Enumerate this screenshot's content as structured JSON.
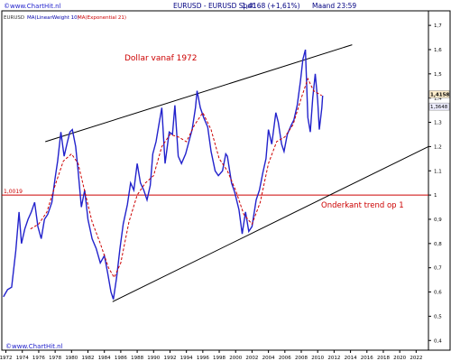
{
  "header": {
    "watermark_top": "©www.ChartHit.nl",
    "title": "EURUSD - EURUSD Spot",
    "last_change": "1,4168 (+1,61%)",
    "period": "Maand 23:59"
  },
  "legend_row": {
    "symbol": "EURUSD",
    "ma_long": "MA(LinearWeight 10)",
    "ma_short": "MA(Exponential 21)"
  },
  "watermark_bottom": "©www.ChartHit.nl",
  "chart_data": {
    "type": "line",
    "title": "Dollar vanaf 1972",
    "x_ticks": [
      "1972",
      "1974",
      "1976",
      "1978",
      "1980",
      "1982",
      "1984",
      "1986",
      "1988",
      "1990",
      "1992",
      "1994",
      "1996",
      "1998",
      "2000",
      "2002",
      "2004",
      "2006",
      "2008",
      "2010",
      "2012",
      "2014",
      "2016",
      "2018",
      "2020",
      "2022"
    ],
    "y_ticks": [
      "0,4",
      "0,5",
      "0,6",
      "0,7",
      "0,8",
      "0,9",
      "1",
      "1,1",
      "1,2",
      "1,3",
      "1,4",
      "1,5",
      "1,6",
      "1,7"
    ],
    "x_range": [
      1971.5,
      2023.5
    ],
    "y_range": [
      0.36,
      1.76
    ],
    "horizontal_line": {
      "value": 1.0,
      "label": "1,0019"
    },
    "price_labels": [
      {
        "value": 1.4158,
        "text": "1,4158"
      },
      {
        "value": 1.3648,
        "text": "1,3648"
      }
    ],
    "annotations": [
      {
        "text": "Dollar vanaf 1972"
      },
      {
        "text": "Onderkant trend op 1"
      }
    ],
    "trendlines": [
      {
        "name": "upper",
        "from": [
          1976.8,
          1.22
        ],
        "to": [
          2014.2,
          1.62
        ]
      },
      {
        "name": "lower",
        "from": [
          1985.0,
          0.56
        ],
        "to": [
          2023.5,
          1.2
        ]
      }
    ],
    "series": [
      {
        "name": "EURUSD",
        "color": "#2222cc",
        "points": [
          [
            1971.7,
            0.58
          ],
          [
            1972.2,
            0.61
          ],
          [
            1972.7,
            0.62
          ],
          [
            1973.2,
            0.77
          ],
          [
            1973.6,
            0.93
          ],
          [
            1973.9,
            0.8
          ],
          [
            1974.3,
            0.86
          ],
          [
            1974.7,
            0.9
          ],
          [
            1975.1,
            0.93
          ],
          [
            1975.5,
            0.97
          ],
          [
            1975.9,
            0.87
          ],
          [
            1976.3,
            0.82
          ],
          [
            1976.7,
            0.9
          ],
          [
            1977.1,
            0.92
          ],
          [
            1977.6,
            0.97
          ],
          [
            1978.0,
            1.07
          ],
          [
            1978.3,
            1.14
          ],
          [
            1978.7,
            1.26
          ],
          [
            1979.1,
            1.16
          ],
          [
            1979.5,
            1.22
          ],
          [
            1979.8,
            1.26
          ],
          [
            1980.1,
            1.27
          ],
          [
            1980.5,
            1.2
          ],
          [
            1980.8,
            1.1
          ],
          [
            1981.2,
            0.95
          ],
          [
            1981.6,
            1.02
          ],
          [
            1982.0,
            0.9
          ],
          [
            1982.5,
            0.82
          ],
          [
            1983.0,
            0.78
          ],
          [
            1983.5,
            0.72
          ],
          [
            1984.0,
            0.75
          ],
          [
            1984.4,
            0.68
          ],
          [
            1984.8,
            0.6
          ],
          [
            1985.1,
            0.57
          ],
          [
            1985.5,
            0.66
          ],
          [
            1985.9,
            0.78
          ],
          [
            1986.3,
            0.88
          ],
          [
            1986.8,
            0.96
          ],
          [
            1987.2,
            1.05
          ],
          [
            1987.6,
            1.02
          ],
          [
            1988.0,
            1.13
          ],
          [
            1988.4,
            1.05
          ],
          [
            1988.8,
            1.02
          ],
          [
            1989.2,
            0.98
          ],
          [
            1989.6,
            1.04
          ],
          [
            1989.9,
            1.17
          ],
          [
            1990.3,
            1.22
          ],
          [
            1990.7,
            1.3
          ],
          [
            1991.0,
            1.36
          ],
          [
            1991.4,
            1.13
          ],
          [
            1991.9,
            1.26
          ],
          [
            1992.3,
            1.25
          ],
          [
            1992.6,
            1.37
          ],
          [
            1993.0,
            1.16
          ],
          [
            1993.4,
            1.13
          ],
          [
            1993.9,
            1.17
          ],
          [
            1994.3,
            1.22
          ],
          [
            1994.7,
            1.27
          ],
          [
            1995.1,
            1.36
          ],
          [
            1995.3,
            1.43
          ],
          [
            1995.7,
            1.36
          ],
          [
            1996.1,
            1.32
          ],
          [
            1996.6,
            1.28
          ],
          [
            1997.0,
            1.18
          ],
          [
            1997.5,
            1.1
          ],
          [
            1997.9,
            1.08
          ],
          [
            1998.4,
            1.1
          ],
          [
            1998.8,
            1.17
          ],
          [
            1999.0,
            1.16
          ],
          [
            1999.5,
            1.05
          ],
          [
            1999.9,
            1.01
          ],
          [
            2000.4,
            0.94
          ],
          [
            2000.8,
            0.84
          ],
          [
            2001.2,
            0.93
          ],
          [
            2001.6,
            0.85
          ],
          [
            2002.0,
            0.87
          ],
          [
            2002.5,
            0.98
          ],
          [
            2002.9,
            1.02
          ],
          [
            2003.3,
            1.09
          ],
          [
            2003.7,
            1.15
          ],
          [
            2004.0,
            1.27
          ],
          [
            2004.4,
            1.21
          ],
          [
            2004.9,
            1.34
          ],
          [
            2005.2,
            1.3
          ],
          [
            2005.6,
            1.21
          ],
          [
            2005.9,
            1.18
          ],
          [
            2006.3,
            1.25
          ],
          [
            2006.8,
            1.29
          ],
          [
            2007.1,
            1.31
          ],
          [
            2007.5,
            1.37
          ],
          [
            2007.9,
            1.47
          ],
          [
            2008.2,
            1.56
          ],
          [
            2008.5,
            1.6
          ],
          [
            2008.8,
            1.32
          ],
          [
            2009.1,
            1.26
          ],
          [
            2009.4,
            1.4
          ],
          [
            2009.7,
            1.5
          ],
          [
            2010.0,
            1.39
          ],
          [
            2010.2,
            1.27
          ],
          [
            2010.5,
            1.36
          ],
          [
            2010.6,
            1.41
          ]
        ]
      },
      {
        "name": "MA(Exponential 21)",
        "color": "#cc0000",
        "points": [
          [
            1975.0,
            0.86
          ],
          [
            1976.0,
            0.88
          ],
          [
            1977.0,
            0.93
          ],
          [
            1978.0,
            1.04
          ],
          [
            1979.0,
            1.14
          ],
          [
            1980.0,
            1.17
          ],
          [
            1980.8,
            1.13
          ],
          [
            1981.5,
            1.03
          ],
          [
            1982.5,
            0.89
          ],
          [
            1983.5,
            0.8
          ],
          [
            1984.5,
            0.7
          ],
          [
            1985.2,
            0.66
          ],
          [
            1986.0,
            0.72
          ],
          [
            1987.0,
            0.89
          ],
          [
            1988.0,
            1.0
          ],
          [
            1989.0,
            1.05
          ],
          [
            1990.0,
            1.08
          ],
          [
            1991.0,
            1.2
          ],
          [
            1992.0,
            1.25
          ],
          [
            1993.0,
            1.24
          ],
          [
            1994.0,
            1.22
          ],
          [
            1995.0,
            1.29
          ],
          [
            1996.0,
            1.34
          ],
          [
            1997.0,
            1.27
          ],
          [
            1998.0,
            1.15
          ],
          [
            1999.0,
            1.1
          ],
          [
            2000.0,
            1.02
          ],
          [
            2001.0,
            0.92
          ],
          [
            2002.0,
            0.88
          ],
          [
            2003.0,
            0.97
          ],
          [
            2004.0,
            1.13
          ],
          [
            2005.0,
            1.22
          ],
          [
            2006.0,
            1.24
          ],
          [
            2007.0,
            1.29
          ],
          [
            2008.0,
            1.4
          ],
          [
            2008.8,
            1.48
          ],
          [
            2009.5,
            1.43
          ],
          [
            2010.5,
            1.41
          ]
        ]
      }
    ]
  }
}
